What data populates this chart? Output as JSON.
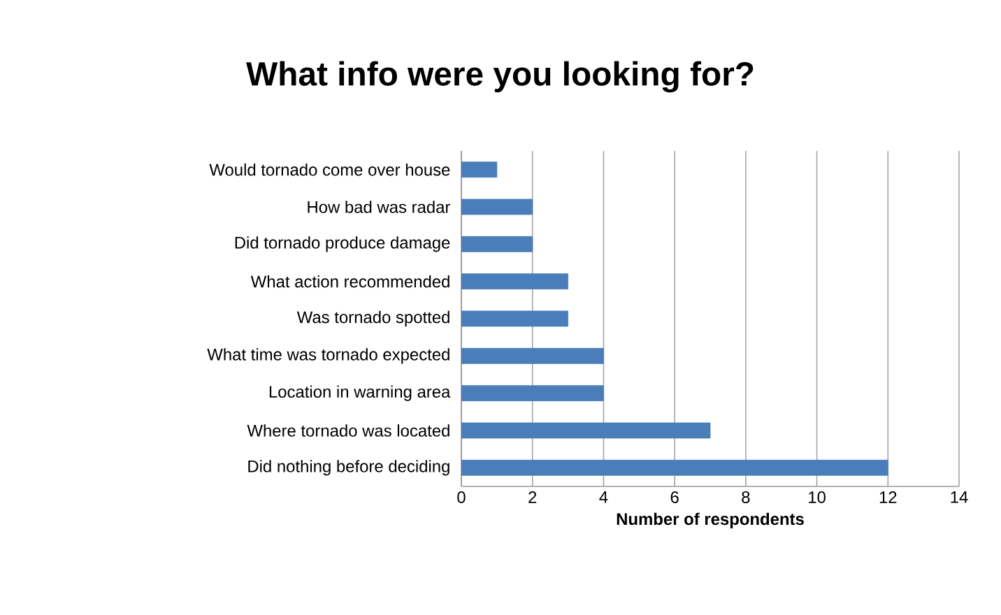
{
  "chart_data": {
    "type": "bar",
    "orientation": "horizontal",
    "title": "What info were you looking for?",
    "xlabel": "Number of respondents",
    "categories": [
      "Would tornado come over house",
      "How bad was radar",
      "Did tornado produce damage",
      "What action recommended",
      "Was tornado spotted",
      "What time was tornado expected",
      "Location in warning area",
      "Where tornado was located",
      "Did nothing before deciding"
    ],
    "values": [
      1,
      2,
      2,
      3,
      3,
      4,
      4,
      7,
      12
    ],
    "color": "#4a7ebb",
    "xlim": [
      0,
      14
    ],
    "xticks": [
      0,
      2,
      4,
      6,
      8,
      10,
      12,
      14
    ],
    "grid": "x"
  }
}
